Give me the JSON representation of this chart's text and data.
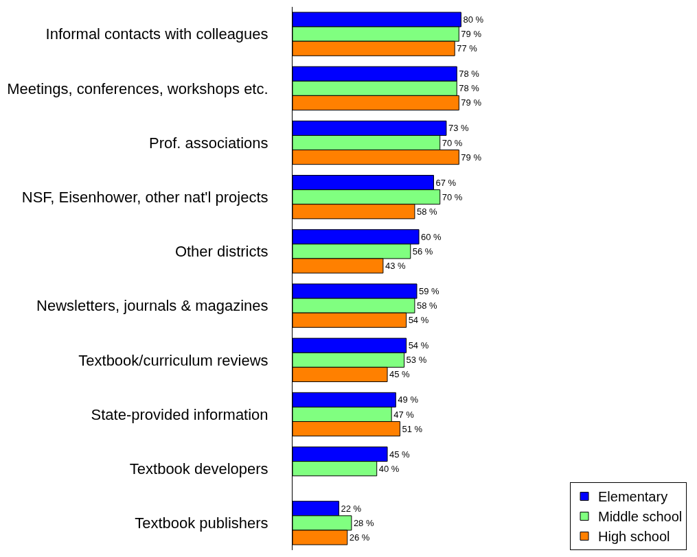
{
  "chart_data": {
    "type": "bar",
    "orientation": "horizontal",
    "categories": [
      "Informal contacts with colleagues",
      "Meetings, conferences, workshops etc.",
      "Prof. associations",
      "NSF, Eisenhower, other nat'l projects",
      "Other districts",
      "Newsletters, journals & magazines",
      "Textbook/curriculum reviews",
      "State-provided information",
      "Textbook developers",
      "Textbook publishers"
    ],
    "series": [
      {
        "name": "Elementary",
        "color": "#0000ff",
        "values": [
          80,
          78,
          73,
          67,
          60,
          59,
          54,
          49,
          45,
          22
        ],
        "value_labels": [
          "80 %",
          "78 %",
          "73 %",
          "67 %",
          "60 %",
          "59 %",
          "54 %",
          "49 %",
          "45 %",
          "22 %"
        ]
      },
      {
        "name": "Middle school",
        "color": "#80ff80",
        "values": [
          79,
          78,
          70,
          70,
          56,
          58,
          53,
          47,
          40,
          28
        ],
        "value_labels": [
          "79 %",
          "78 %",
          "70 %",
          "70 %",
          "56 %",
          "58 %",
          "53 %",
          "47 %",
          "40 %",
          "28 %"
        ]
      },
      {
        "name": "High school",
        "color": "#ff8000",
        "values": [
          77,
          79,
          79,
          58,
          43,
          54,
          45,
          51,
          null,
          26
        ],
        "value_labels": [
          "77 %",
          "79 %",
          "79 %",
          "58 %",
          "43 %",
          "54 %",
          "45 %",
          "51 %",
          null,
          "26 %"
        ]
      }
    ],
    "tick_labels": "y",
    "legend": "bottom right"
  }
}
